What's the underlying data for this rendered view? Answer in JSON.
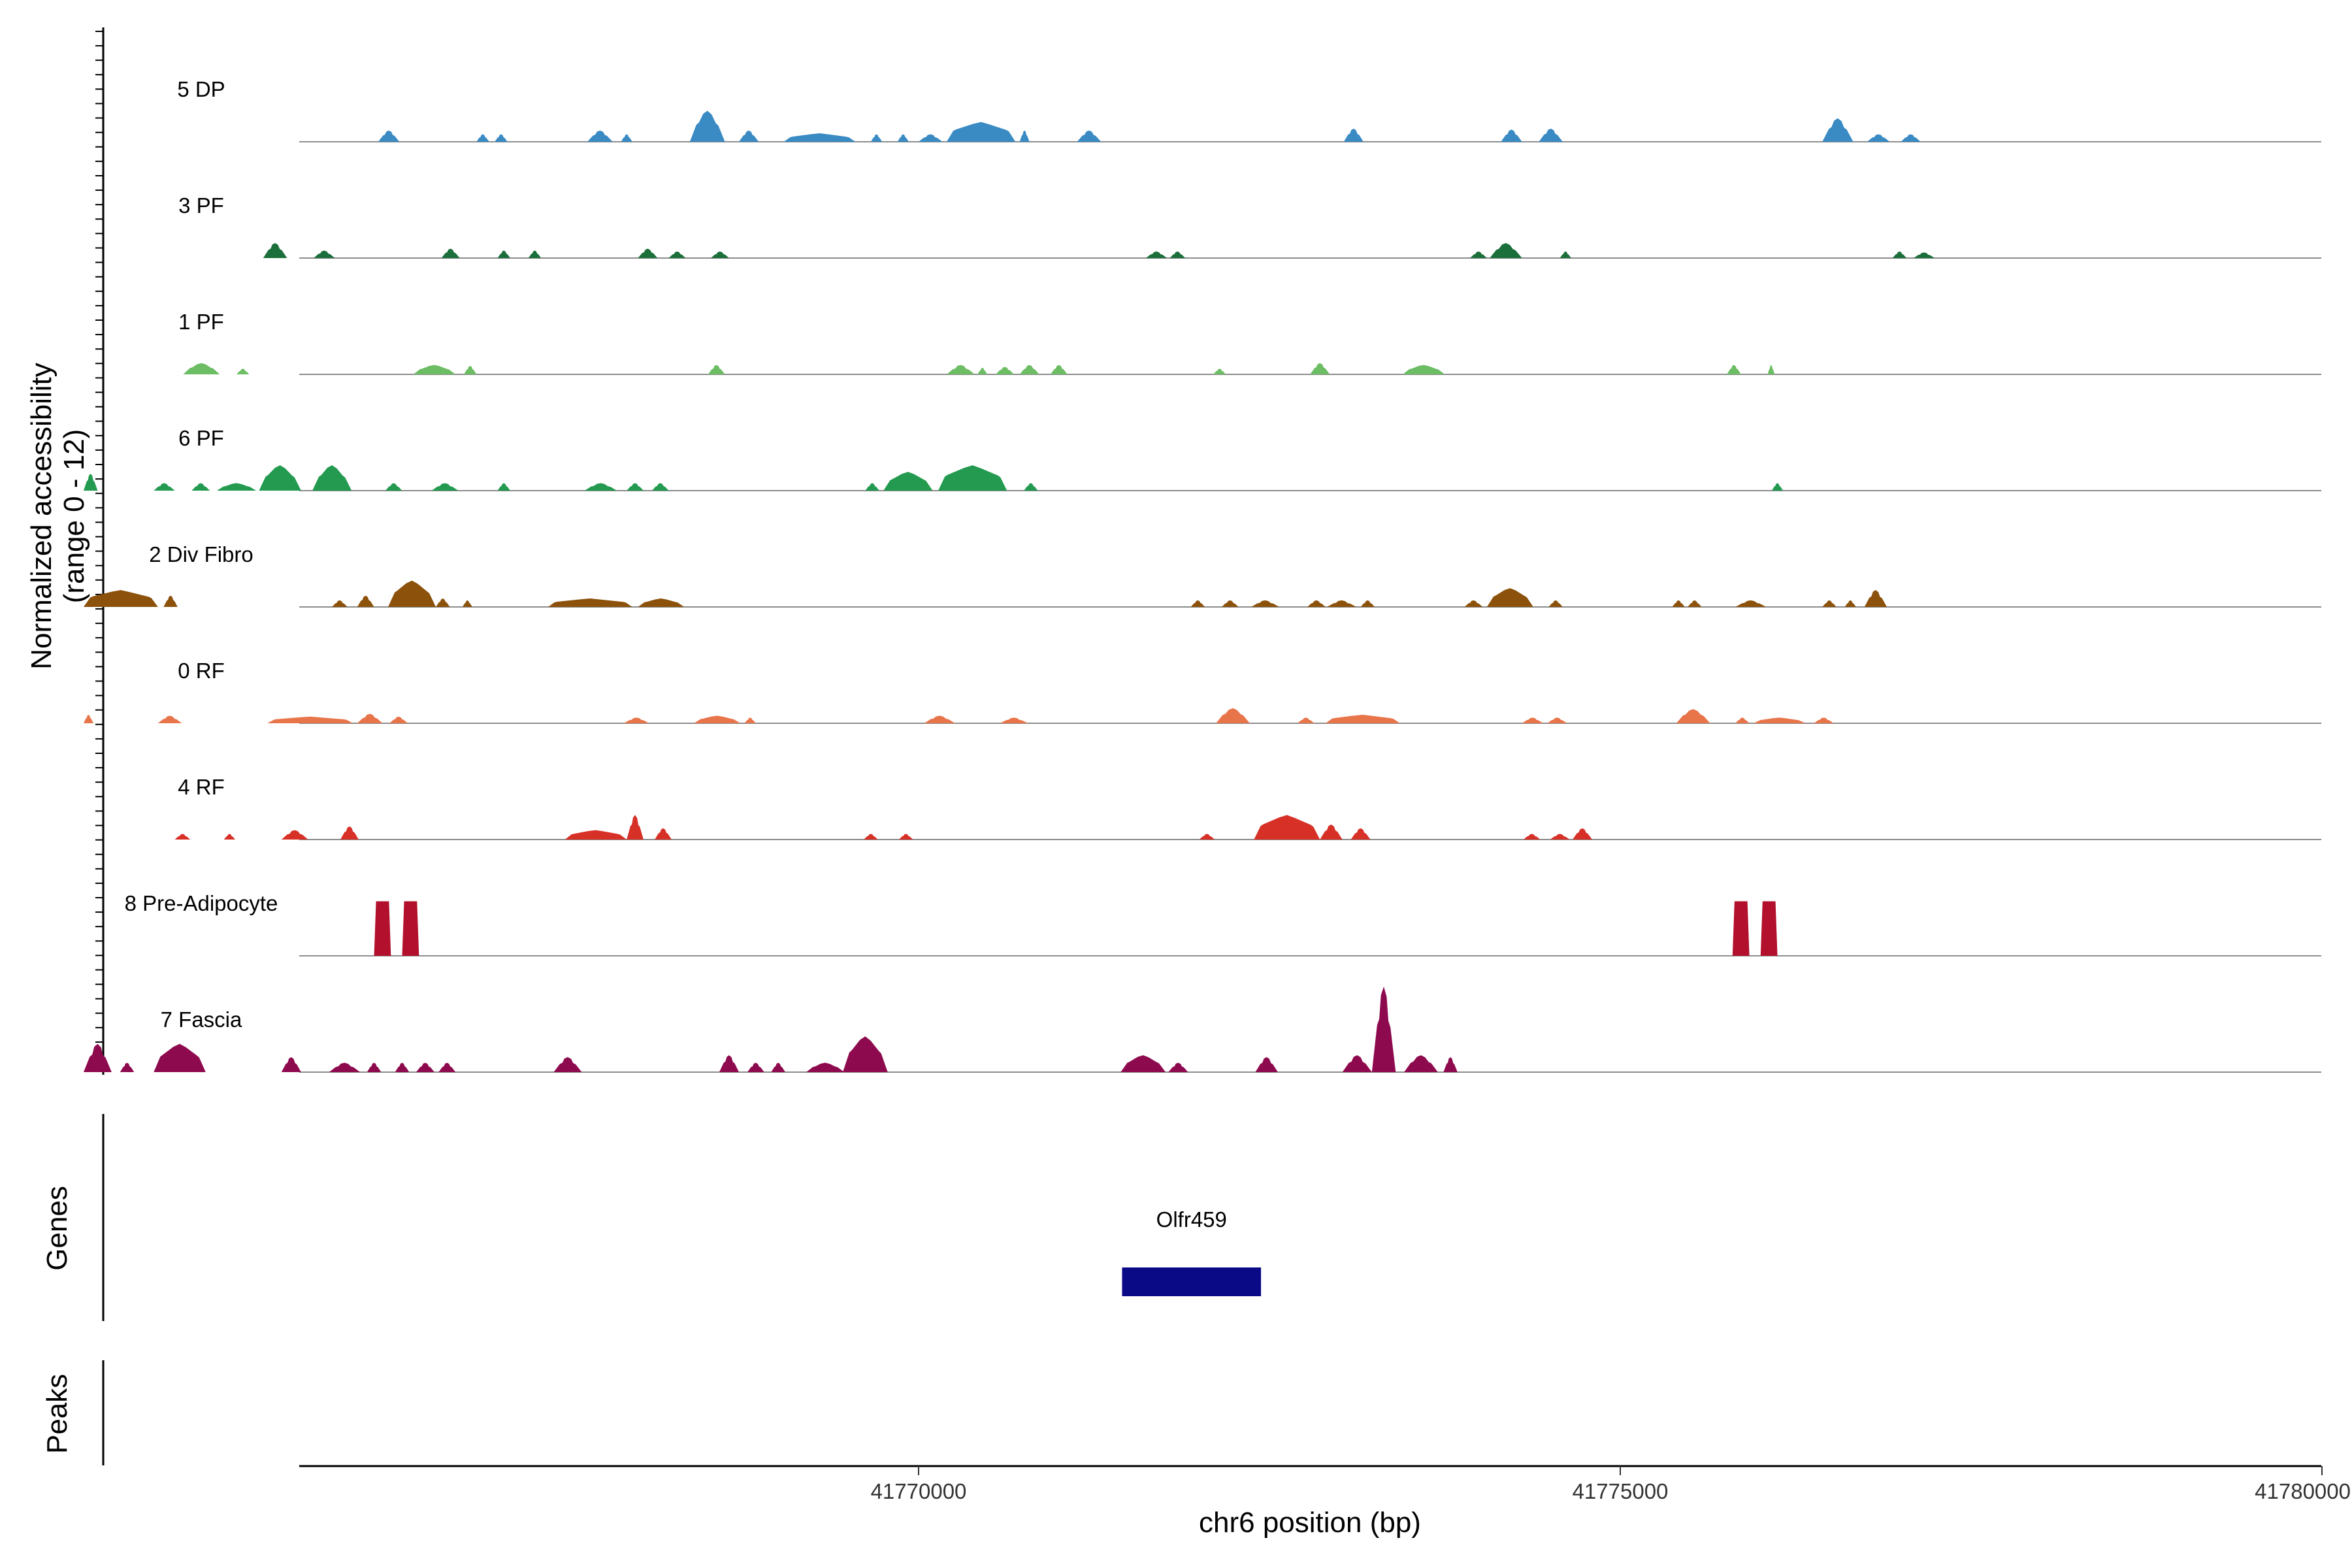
{
  "chart_data": {
    "type": "area",
    "title": "",
    "region": {
      "chrom": "chr6",
      "start": 41764350,
      "end": 41778000
    },
    "xlabel": "chr6 position (bp)",
    "x_ticks": [
      41770000,
      41775000,
      41780000
    ],
    "x_tick_labels": [
      "41770000",
      "41775000",
      "41780000"
    ],
    "ylabel_line1": "Normalized accessibility",
    "ylabel_line2": "(range 0 - 12)",
    "ylim": [
      0,
      12
    ],
    "genes_title": "Genes",
    "peaks_title": "Peaks",
    "series": [
      {
        "name": "5 DP",
        "color": "#3a8ac4",
        "peaks": [
          [
            41766150,
            41766300,
            1.2
          ],
          [
            41766850,
            41766940,
            0.8
          ],
          [
            41766980,
            41767070,
            0.8
          ],
          [
            41767640,
            41767820,
            1.2
          ],
          [
            41767880,
            41767960,
            0.8
          ],
          [
            41768370,
            41768620,
            3.3
          ],
          [
            41768720,
            41768860,
            1.2
          ],
          [
            41769040,
            41769550,
            0.9
          ],
          [
            41769660,
            41769740,
            0.8
          ],
          [
            41769850,
            41769930,
            0.8
          ],
          [
            41770000,
            41770170,
            0.8
          ],
          [
            41770200,
            41770690,
            2.1
          ],
          [
            41770720,
            41770790,
            1.2
          ],
          [
            41771130,
            41771300,
            1.2
          ],
          [
            41773030,
            41773170,
            1.4
          ],
          [
            41774150,
            41774300,
            1.3
          ],
          [
            41774420,
            41774590,
            1.4
          ],
          [
            41776440,
            41776660,
            2.5
          ],
          [
            41776760,
            41776920,
            0.8
          ],
          [
            41777000,
            41777140,
            0.8
          ]
        ]
      },
      {
        "name": "3 PF",
        "color": "#1b6f3a",
        "peaks": [
          [
            41765330,
            41765500,
            1.6
          ],
          [
            41765690,
            41765840,
            0.8
          ],
          [
            41766600,
            41766730,
            1.0
          ],
          [
            41767000,
            41767090,
            0.8
          ],
          [
            41767220,
            41767310,
            0.8
          ],
          [
            41768000,
            41768140,
            1.0
          ],
          [
            41768220,
            41768340,
            0.7
          ],
          [
            41768520,
            41768650,
            0.7
          ],
          [
            41771620,
            41771770,
            0.7
          ],
          [
            41771790,
            41771900,
            0.7
          ],
          [
            41773930,
            41774050,
            0.7
          ],
          [
            41774070,
            41774300,
            1.6
          ],
          [
            41774570,
            41774650,
            0.7
          ],
          [
            41776940,
            41777040,
            0.7
          ],
          [
            41777090,
            41777240,
            0.6
          ]
        ]
      },
      {
        "name": "1 PF",
        "color": "#6cbd64",
        "peaks": [
          [
            41764760,
            41765020,
            1.2
          ],
          [
            41765140,
            41765230,
            0.6
          ],
          [
            41766400,
            41766700,
            1.0
          ],
          [
            41766760,
            41766850,
            0.9
          ],
          [
            41768500,
            41768620,
            1.0
          ],
          [
            41770200,
            41770400,
            1.0
          ],
          [
            41770420,
            41770490,
            0.7
          ],
          [
            41770550,
            41770680,
            0.8
          ],
          [
            41770720,
            41770860,
            1.0
          ],
          [
            41770940,
            41771060,
            1.0
          ],
          [
            41772100,
            41772190,
            0.6
          ],
          [
            41772790,
            41772930,
            1.2
          ],
          [
            41773450,
            41773750,
            1.0
          ],
          [
            41775760,
            41775860,
            1.0
          ],
          [
            41776050,
            41776100,
            1.0
          ]
        ]
      },
      {
        "name": "6 PF",
        "color": "#239a4f",
        "peaks": [
          [
            41764050,
            41764150,
            1.8
          ],
          [
            41764550,
            41764700,
            0.8
          ],
          [
            41764820,
            41764950,
            0.8
          ],
          [
            41765000,
            41765280,
            0.8
          ],
          [
            41765300,
            41765600,
            2.7
          ],
          [
            41765680,
            41765960,
            2.7
          ],
          [
            41766200,
            41766320,
            0.8
          ],
          [
            41766530,
            41766720,
            0.8
          ],
          [
            41767000,
            41767090,
            0.8
          ],
          [
            41767620,
            41767850,
            0.8
          ],
          [
            41767920,
            41768040,
            0.8
          ],
          [
            41768100,
            41768220,
            0.8
          ],
          [
            41769620,
            41769720,
            0.8
          ],
          [
            41769750,
            41770100,
            2.0
          ],
          [
            41770140,
            41770630,
            2.7
          ],
          [
            41770750,
            41770850,
            0.8
          ],
          [
            41776080,
            41776160,
            0.8
          ]
        ]
      },
      {
        "name": "2 Div Fibro",
        "color": "#8c510a",
        "peaks": [
          [
            41764050,
            41764580,
            1.8
          ],
          [
            41764620,
            41764720,
            1.2
          ],
          [
            41765820,
            41765930,
            0.7
          ],
          [
            41766000,
            41766120,
            1.2
          ],
          [
            41766220,
            41766560,
            2.8
          ],
          [
            41766560,
            41766660,
            0.9
          ],
          [
            41766750,
            41766820,
            0.7
          ],
          [
            41767360,
            41767960,
            0.9
          ],
          [
            41768000,
            41768330,
            0.9
          ],
          [
            41771940,
            41772040,
            0.7
          ],
          [
            41772160,
            41772280,
            0.7
          ],
          [
            41772370,
            41772570,
            0.7
          ],
          [
            41772770,
            41772900,
            0.7
          ],
          [
            41772910,
            41773120,
            0.7
          ],
          [
            41773150,
            41773250,
            0.7
          ],
          [
            41773890,
            41774020,
            0.7
          ],
          [
            41774050,
            41774380,
            2.0
          ],
          [
            41774490,
            41774590,
            0.7
          ],
          [
            41775370,
            41775460,
            0.7
          ],
          [
            41775480,
            41775580,
            0.7
          ],
          [
            41775820,
            41776040,
            0.7
          ],
          [
            41776440,
            41776540,
            0.7
          ],
          [
            41776600,
            41776680,
            0.7
          ],
          [
            41776740,
            41776900,
            1.8
          ]
        ]
      },
      {
        "name": "0 RF",
        "color": "#e8744a",
        "peaks": [
          [
            41764050,
            41764120,
            0.9
          ],
          [
            41764580,
            41764750,
            0.8
          ],
          [
            41765360,
            41765970,
            0.7
          ],
          [
            41766000,
            41766180,
            1.0
          ],
          [
            41766230,
            41766360,
            0.7
          ],
          [
            41767900,
            41768080,
            0.6
          ],
          [
            41768400,
            41768730,
            0.8
          ],
          [
            41768760,
            41768840,
            0.6
          ],
          [
            41770040,
            41770260,
            0.8
          ],
          [
            41770580,
            41770780,
            0.6
          ],
          [
            41772120,
            41772360,
            1.6
          ],
          [
            41772700,
            41772820,
            0.6
          ],
          [
            41772900,
            41773430,
            0.9
          ],
          [
            41774300,
            41774450,
            0.6
          ],
          [
            41774480,
            41774620,
            0.6
          ],
          [
            41775400,
            41775640,
            1.5
          ],
          [
            41775820,
            41775920,
            0.6
          ],
          [
            41775950,
            41776320,
            0.6
          ],
          [
            41776380,
            41776520,
            0.6
          ]
        ]
      },
      {
        "name": "4 RF",
        "color": "#d73027",
        "peaks": [
          [
            41764700,
            41764810,
            0.6
          ],
          [
            41765050,
            41765130,
            0.6
          ],
          [
            41765460,
            41765650,
            1.0
          ],
          [
            41765880,
            41766010,
            1.4
          ],
          [
            41767480,
            41767920,
            1.0
          ],
          [
            41767920,
            41768040,
            2.6
          ],
          [
            41768120,
            41768240,
            1.2
          ],
          [
            41769610,
            41769710,
            0.6
          ],
          [
            41769860,
            41769960,
            0.6
          ],
          [
            41772000,
            41772110,
            0.6
          ],
          [
            41772390,
            41772860,
            2.6
          ],
          [
            41772860,
            41773020,
            1.6
          ],
          [
            41773080,
            41773220,
            1.2
          ],
          [
            41774310,
            41774430,
            0.6
          ],
          [
            41774500,
            41774640,
            0.6
          ],
          [
            41774660,
            41774800,
            1.2
          ]
        ]
      },
      {
        "name": "8 Pre-Adipocyte",
        "color": "#b2102c",
        "peaks": [
          [
            41766120,
            41766240,
            5.8
          ],
          [
            41766320,
            41766440,
            5.8
          ],
          [
            41775800,
            41775920,
            5.8
          ],
          [
            41776000,
            41776120,
            5.8
          ]
        ]
      },
      {
        "name": "7 Fascia",
        "color": "#8e0a4f",
        "peaks": [
          [
            41764050,
            41764250,
            3.0
          ],
          [
            41764310,
            41764410,
            1.0
          ],
          [
            41764550,
            41764920,
            3.0
          ],
          [
            41765460,
            41765600,
            1.6
          ],
          [
            41765800,
            41766020,
            1.0
          ],
          [
            41766070,
            41766170,
            1.0
          ],
          [
            41766270,
            41766370,
            1.0
          ],
          [
            41766420,
            41766550,
            1.0
          ],
          [
            41766580,
            41766700,
            1.0
          ],
          [
            41767400,
            41767600,
            1.6
          ],
          [
            41768580,
            41768720,
            1.8
          ],
          [
            41768780,
            41768900,
            1.0
          ],
          [
            41768950,
            41769050,
            1.0
          ],
          [
            41769200,
            41769470,
            1.0
          ],
          [
            41769460,
            41769780,
            3.8
          ],
          [
            41771440,
            41771760,
            1.8
          ],
          [
            41771780,
            41771920,
            1.0
          ],
          [
            41772400,
            41772560,
            1.6
          ],
          [
            41773020,
            41773230,
            1.8
          ],
          [
            41773230,
            41773400,
            9.1
          ],
          [
            41773460,
            41773700,
            1.8
          ],
          [
            41773740,
            41773840,
            1.6
          ]
        ]
      }
    ],
    "genes": [
      {
        "name": "Olfr459",
        "start": 41771450,
        "end": 41772440,
        "color": "#0a0a87"
      }
    ],
    "peaks_track": []
  }
}
